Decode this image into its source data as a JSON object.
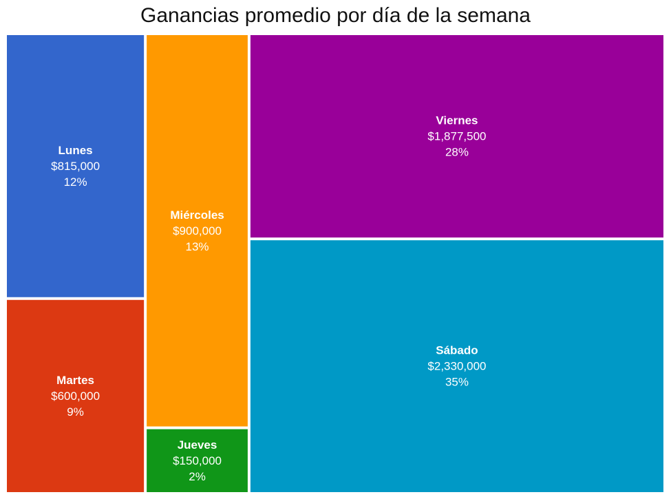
{
  "chart_data": {
    "type": "treemap",
    "title": "Ganancias promedio por día de la semana",
    "items": [
      {
        "name": "Lunes",
        "value": 815000,
        "value_label": "$815,000",
        "percent_label": "12%",
        "color": "#3366CC"
      },
      {
        "name": "Martes",
        "value": 600000,
        "value_label": "$600,000",
        "percent_label": "9%",
        "color": "#DC3912"
      },
      {
        "name": "Miércoles",
        "value": 900000,
        "value_label": "$900,000",
        "percent_label": "13%",
        "color": "#FF9900"
      },
      {
        "name": "Jueves",
        "value": 150000,
        "value_label": "$150,000",
        "percent_label": "2%",
        "color": "#109618"
      },
      {
        "name": "Viernes",
        "value": 1877500,
        "value_label": "$1,877,500",
        "percent_label": "28%",
        "color": "#990099"
      },
      {
        "name": "Sábado",
        "value": 2330000,
        "value_label": "$2,330,000",
        "percent_label": "35%",
        "color": "#0099C6"
      }
    ]
  }
}
